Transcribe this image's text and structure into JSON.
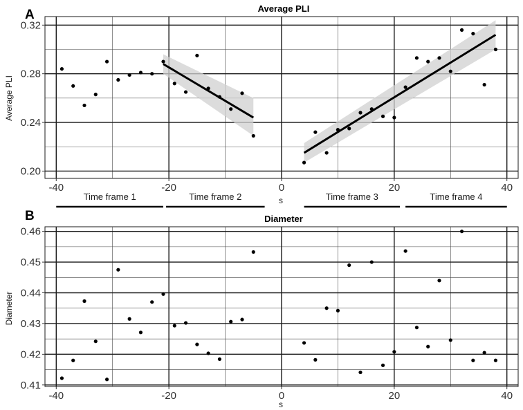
{
  "chart_data": [
    {
      "tag": "A",
      "type": "scatter",
      "title": "Average PLI",
      "xlabel": "s",
      "ylabel": "Average PLI",
      "xlim": [
        -42,
        42
      ],
      "ylim": [
        0.194,
        0.327
      ],
      "xticks": [
        -40,
        -20,
        0,
        20,
        40
      ],
      "yticks": [
        0.2,
        0.24,
        0.28,
        0.32
      ],
      "ytick_labels": [
        "0.20",
        "0.24",
        "0.28",
        "0.32"
      ],
      "points": [
        {
          "x": -39,
          "y": 0.284
        },
        {
          "x": -37,
          "y": 0.27
        },
        {
          "x": -35,
          "y": 0.254
        },
        {
          "x": -33,
          "y": 0.263
        },
        {
          "x": -31,
          "y": 0.29
        },
        {
          "x": -29,
          "y": 0.275
        },
        {
          "x": -27,
          "y": 0.279
        },
        {
          "x": -25,
          "y": 0.281
        },
        {
          "x": -23,
          "y": 0.28
        },
        {
          "x": -21,
          "y": 0.29
        },
        {
          "x": -19,
          "y": 0.272
        },
        {
          "x": -17,
          "y": 0.265
        },
        {
          "x": -15,
          "y": 0.295
        },
        {
          "x": -13,
          "y": 0.268
        },
        {
          "x": -11,
          "y": 0.261
        },
        {
          "x": -9,
          "y": 0.251
        },
        {
          "x": -7,
          "y": 0.264
        },
        {
          "x": -5,
          "y": 0.229
        },
        {
          "x": 4,
          "y": 0.207
        },
        {
          "x": 6,
          "y": 0.232
        },
        {
          "x": 8,
          "y": 0.215
        },
        {
          "x": 10,
          "y": 0.234
        },
        {
          "x": 12,
          "y": 0.235
        },
        {
          "x": 14,
          "y": 0.248
        },
        {
          "x": 16,
          "y": 0.251
        },
        {
          "x": 18,
          "y": 0.245
        },
        {
          "x": 20,
          "y": 0.244
        },
        {
          "x": 22,
          "y": 0.269
        },
        {
          "x": 24,
          "y": 0.293
        },
        {
          "x": 26,
          "y": 0.29
        },
        {
          "x": 28,
          "y": 0.293
        },
        {
          "x": 30,
          "y": 0.282
        },
        {
          "x": 32,
          "y": 0.316
        },
        {
          "x": 34,
          "y": 0.313
        },
        {
          "x": 36,
          "y": 0.271
        },
        {
          "x": 38,
          "y": 0.3
        }
      ],
      "fits": [
        {
          "x": [
            -21,
            -5
          ],
          "y": [
            0.288,
            0.244
          ],
          "ci": [
            [
              0.296,
              0.28
            ],
            [
              0.26,
              0.229
            ]
          ]
        },
        {
          "x": [
            4,
            38
          ],
          "y": [
            0.215,
            0.312
          ],
          "ci": [
            [
              0.223,
              0.207
            ],
            [
              0.324,
              0.3
            ]
          ]
        }
      ]
    },
    {
      "tag": "B",
      "type": "scatter",
      "title": "Diameter",
      "xlabel": "s",
      "ylabel": "Diameter",
      "xlim": [
        -42,
        42
      ],
      "ylim": [
        0.4095,
        0.4615
      ],
      "xticks": [
        -40,
        -20,
        0,
        20,
        40
      ],
      "yticks": [
        0.41,
        0.42,
        0.43,
        0.44,
        0.45,
        0.46
      ],
      "ytick_labels": [
        "0.41",
        "0.42",
        "0.43",
        "0.44",
        "0.45",
        "0.46"
      ],
      "points": [
        {
          "x": -39,
          "y": 0.4122
        },
        {
          "x": -37,
          "y": 0.418
        },
        {
          "x": -35,
          "y": 0.4373
        },
        {
          "x": -33,
          "y": 0.4242
        },
        {
          "x": -31,
          "y": 0.4118
        },
        {
          "x": -29,
          "y": 0.4475
        },
        {
          "x": -27,
          "y": 0.4315
        },
        {
          "x": -25,
          "y": 0.4271
        },
        {
          "x": -23,
          "y": 0.437
        },
        {
          "x": -21,
          "y": 0.4396
        },
        {
          "x": -19,
          "y": 0.4293
        },
        {
          "x": -17,
          "y": 0.4302
        },
        {
          "x": -15,
          "y": 0.4232
        },
        {
          "x": -13,
          "y": 0.4203
        },
        {
          "x": -11,
          "y": 0.4184
        },
        {
          "x": -9,
          "y": 0.4306
        },
        {
          "x": -7,
          "y": 0.4313
        },
        {
          "x": -5,
          "y": 0.4533
        },
        {
          "x": 4,
          "y": 0.4237
        },
        {
          "x": 6,
          "y": 0.4182
        },
        {
          "x": 8,
          "y": 0.435
        },
        {
          "x": 10,
          "y": 0.4342
        },
        {
          "x": 12,
          "y": 0.449
        },
        {
          "x": 14,
          "y": 0.4141
        },
        {
          "x": 16,
          "y": 0.45
        },
        {
          "x": 18,
          "y": 0.4164
        },
        {
          "x": 20,
          "y": 0.4208
        },
        {
          "x": 22,
          "y": 0.4536
        },
        {
          "x": 24,
          "y": 0.4287
        },
        {
          "x": 26,
          "y": 0.4225
        },
        {
          "x": 28,
          "y": 0.444
        },
        {
          "x": 30,
          "y": 0.4246
        },
        {
          "x": 32,
          "y": 0.46
        },
        {
          "x": 34,
          "y": 0.418
        },
        {
          "x": 36,
          "y": 0.4205
        },
        {
          "x": 38,
          "y": 0.418
        }
      ],
      "fits": []
    }
  ],
  "time_frames": [
    {
      "label": "Time frame 1",
      "x": [
        -40,
        -21
      ]
    },
    {
      "label": "Time frame 2",
      "x": [
        -20.5,
        -3
      ]
    },
    {
      "label": "Time frame 3",
      "x": [
        4,
        21
      ]
    },
    {
      "label": "Time frame 4",
      "x": [
        22,
        40
      ]
    }
  ]
}
